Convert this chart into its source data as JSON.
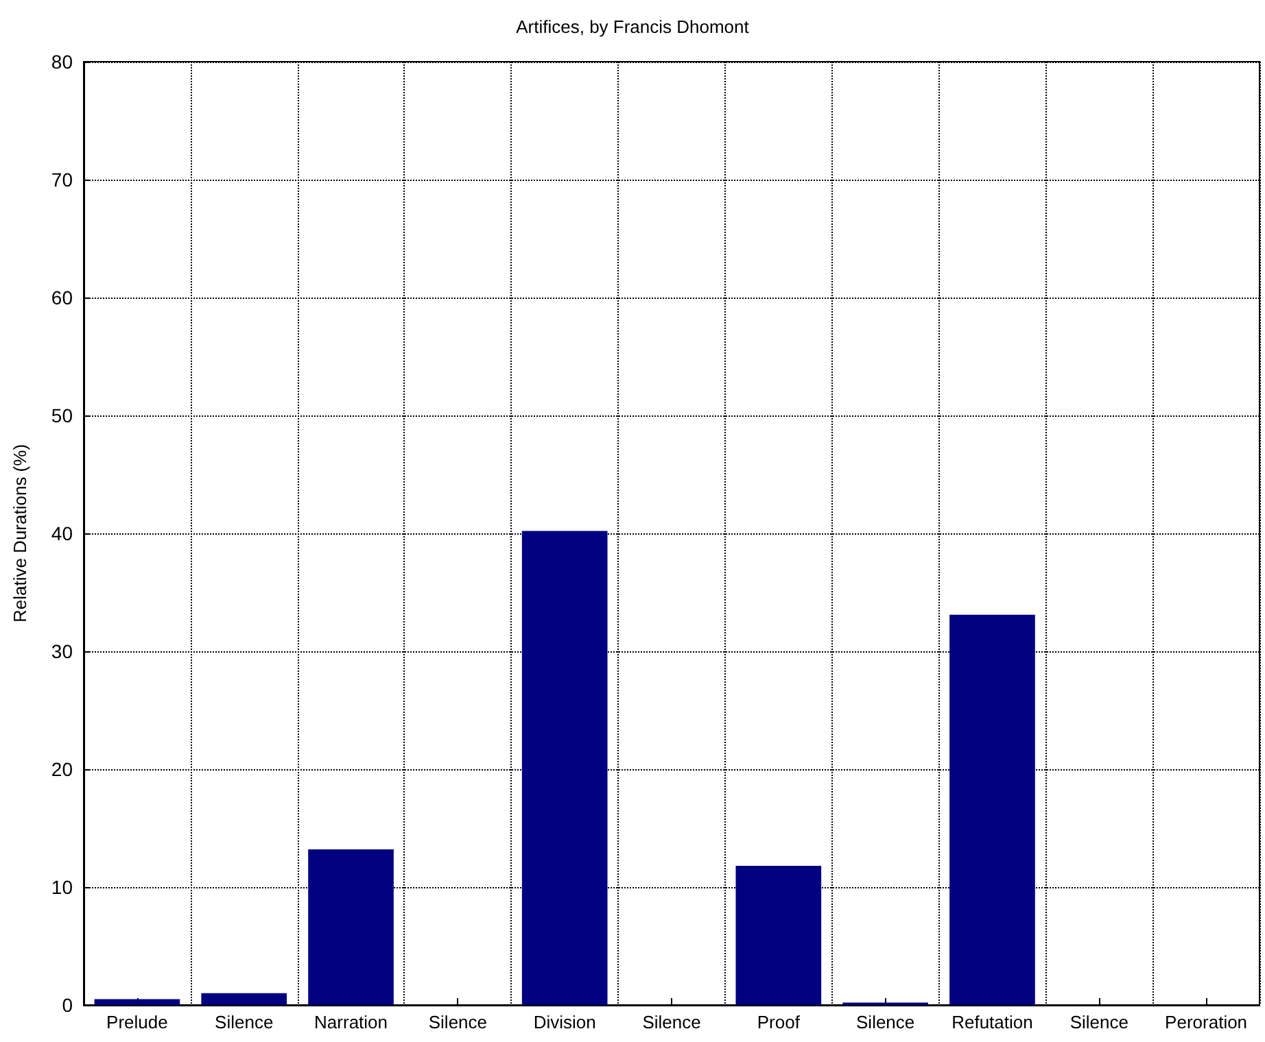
{
  "chart_data": {
    "type": "bar",
    "title": "Artifices, by Francis Dhomont",
    "ylabel": "Relative Durations (%)",
    "categories": [
      "Prelude",
      "Silence",
      "Narration",
      "Silence",
      "Division",
      "Silence",
      "Proof",
      "Silence",
      "Refutation",
      "Silence",
      "Peroration"
    ],
    "values": [
      0.5,
      1.0,
      13.2,
      0,
      40.2,
      0,
      11.8,
      0.2,
      33.1,
      0,
      0
    ],
    "color": "#000080",
    "ylim": [
      0,
      80
    ],
    "yticks": [
      0,
      10,
      20,
      30,
      40,
      50,
      60,
      70,
      80
    ],
    "grid": true,
    "line_style": "dotted"
  }
}
